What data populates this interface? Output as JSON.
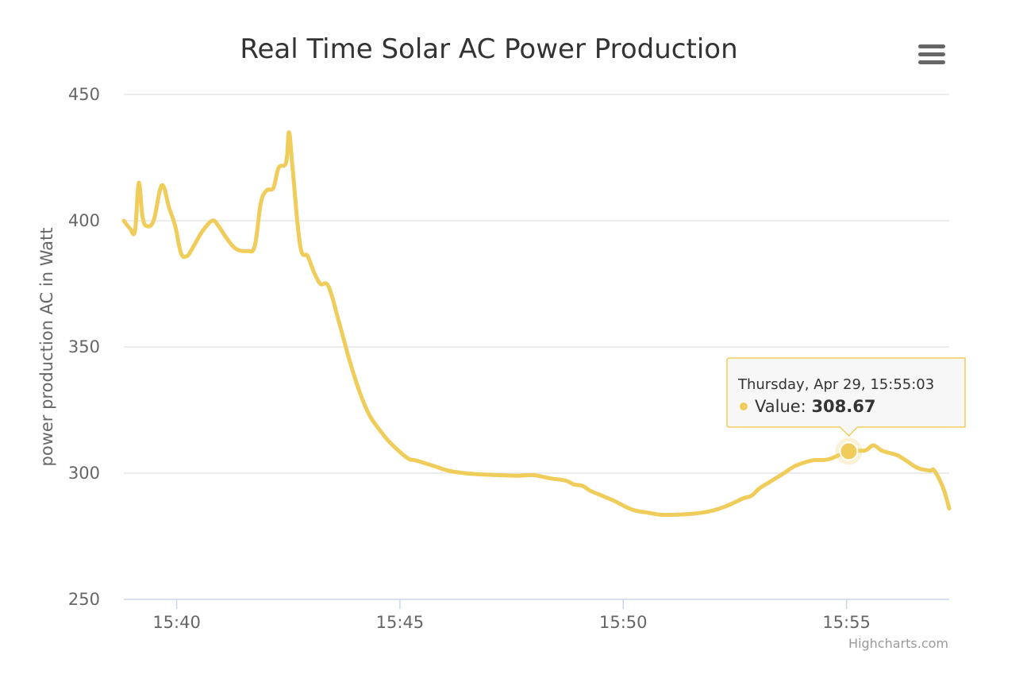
{
  "colors": {
    "series": "#f0cc5a",
    "grid": "#e6e6e6",
    "axis_line": "#ccd6eb",
    "text": "#333333",
    "muted": "#666666",
    "menu": "#666666",
    "tooltip_bg": "#f7f7f7"
  },
  "menu": {
    "icon": "hamburger-menu-icon"
  },
  "credits": {
    "label": "Highcharts.com"
  },
  "tooltip": {
    "header": "Thursday, Apr 29, 15:55:03",
    "series_label": "Value",
    "value": "308.67",
    "x": "15:55:03",
    "y": 308.67
  },
  "chart_data": {
    "type": "line",
    "title": "Real Time Solar AC Power Production",
    "xlabel": "",
    "ylabel": "power production AC in Watt",
    "ylim": [
      250,
      450
    ],
    "yticks": [
      250,
      300,
      350,
      400,
      450
    ],
    "xlim": [
      "15:38:49",
      "15:57:18"
    ],
    "xticks": [
      {
        "value": "15:40:00",
        "label": "15:40"
      },
      {
        "value": "15:45:00",
        "label": "15:45"
      },
      {
        "value": "15:50:00",
        "label": "15:50"
      },
      {
        "value": "15:55:00",
        "label": "15:55"
      }
    ],
    "grid": true,
    "legend": false,
    "series": [
      {
        "color": "#f0cc5a",
        "x": [
          "15:38:49",
          "15:38:57",
          "15:39:04",
          "15:39:09",
          "15:39:14",
          "15:39:19",
          "15:39:29",
          "15:39:40",
          "15:39:50",
          "15:39:58",
          "15:40:06",
          "15:40:14",
          "15:40:19",
          "15:40:25",
          "15:40:35",
          "15:40:48",
          "15:40:56",
          "15:41:05",
          "15:41:19",
          "15:41:35",
          "15:41:45",
          "15:41:53",
          "15:42:01",
          "15:42:10",
          "15:42:17",
          "15:42:27",
          "15:42:31",
          "15:42:36",
          "15:42:46",
          "15:42:56",
          "15:43:04",
          "15:43:13",
          "15:43:24",
          "15:43:38",
          "15:43:52",
          "15:44:06",
          "15:44:19",
          "15:44:33",
          "15:44:47",
          "15:45:10",
          "15:45:22",
          "15:45:44",
          "15:46:05",
          "15:46:27",
          "15:46:49",
          "15:47:14",
          "15:47:38",
          "15:47:59",
          "15:48:21",
          "15:48:43",
          "15:48:54",
          "15:49:05",
          "15:49:16",
          "15:49:32",
          "15:49:48",
          "15:50:08",
          "15:50:19",
          "15:50:30",
          "15:50:52",
          "15:51:14",
          "15:51:36",
          "15:51:58",
          "15:52:19",
          "15:52:41",
          "15:52:52",
          "15:53:03",
          "15:53:14",
          "15:53:25",
          "15:53:36",
          "15:53:52",
          "15:54:14",
          "15:54:36",
          "15:55:03",
          "15:55:25",
          "15:55:36",
          "15:55:47",
          "15:55:58",
          "15:56:09",
          "15:56:20",
          "15:56:36",
          "15:56:52",
          "15:56:58",
          "15:57:10",
          "15:57:18"
        ],
        "y": [
          400,
          397,
          396,
          415,
          402,
          398,
          400,
          414,
          405,
          398,
          387,
          386,
          388,
          391,
          396,
          400,
          398,
          394,
          389,
          388,
          390,
          407,
          412,
          413,
          421,
          423,
          435,
          420,
          390,
          386,
          380,
          375,
          374,
          360,
          345,
          332,
          323,
          317,
          312,
          306,
          305,
          303,
          301,
          300,
          299.5,
          299.2,
          299,
          299.2,
          298,
          297,
          295.5,
          295,
          293,
          291,
          289,
          286,
          285,
          284.5,
          283.5,
          283.6,
          284,
          285,
          287,
          290,
          291,
          294,
          296,
          298,
          300,
          303,
          305,
          305.5,
          308.67,
          309,
          311,
          309,
          308,
          307,
          305,
          302,
          301,
          301,
          294,
          286
        ]
      }
    ]
  }
}
